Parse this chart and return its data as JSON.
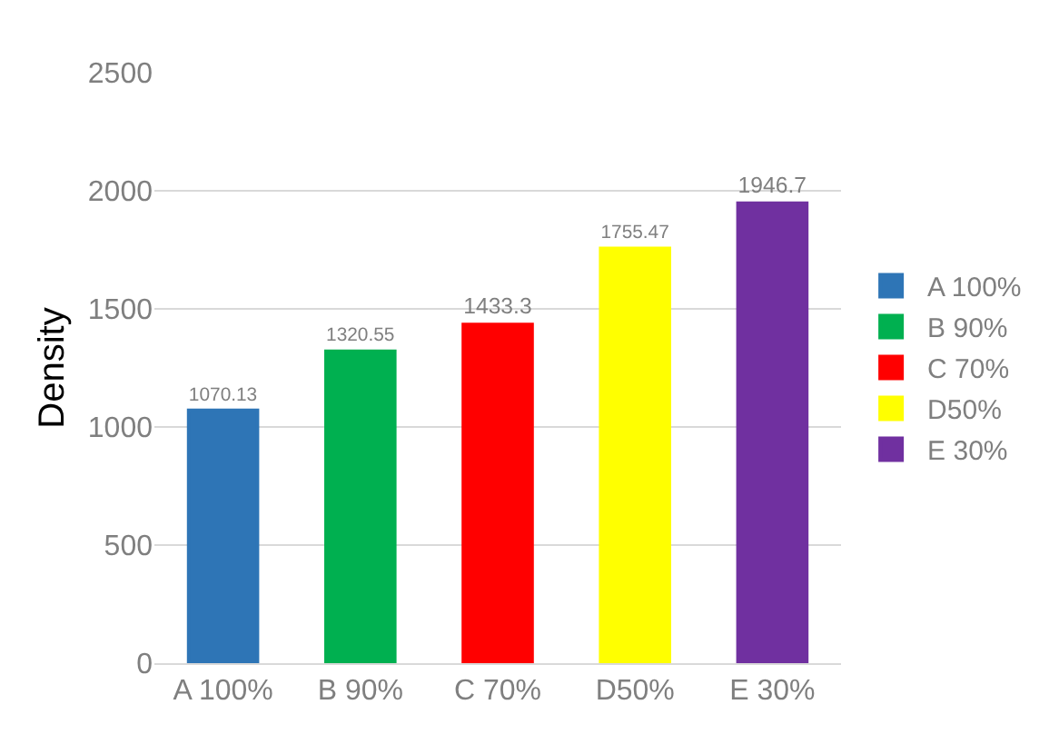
{
  "chart_data": {
    "type": "bar",
    "ylabel": "Density",
    "categories": [
      "A 100%",
      "B 90%",
      "C 70%",
      "D50%",
      "E 30%"
    ],
    "series": [
      {
        "name": "A 100%",
        "color": "#2e75b6",
        "values": [
          1070.13,
          null,
          null,
          null,
          null
        ]
      },
      {
        "name": "B 90%",
        "color": "#00b050",
        "values": [
          null,
          1320.55,
          null,
          null,
          null
        ]
      },
      {
        "name": "C 70%",
        "color": "#ff0000",
        "values": [
          null,
          null,
          1433.3,
          null,
          null
        ]
      },
      {
        "name": "D50%",
        "color": "#ffff00",
        "values": [
          null,
          null,
          null,
          1755.47,
          null
        ]
      },
      {
        "name": "E 30%",
        "color": "#7030a0",
        "values": [
          null,
          null,
          null,
          null,
          1946.7
        ]
      }
    ],
    "ylim": [
      0,
      2500
    ],
    "yticks": [
      0,
      500,
      1000,
      1500,
      2000,
      2500
    ],
    "grid": "y",
    "legend": "right",
    "data_labels": true
  }
}
